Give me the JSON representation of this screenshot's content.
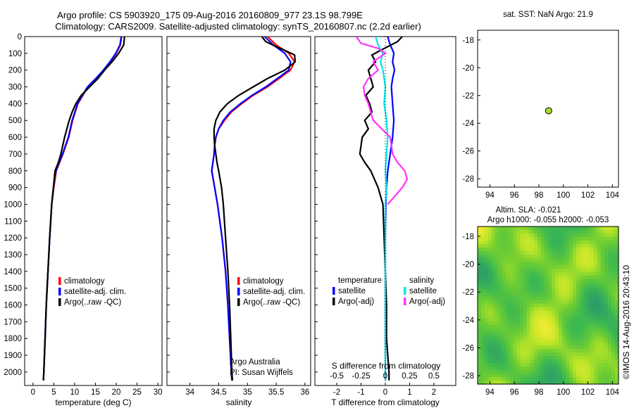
{
  "figure": {
    "title_line1": "Argo profile: CS 5903920_175 09-Aug-2016 20160809_977 23.1S 98.799E",
    "title_line2": "Climatology: CARS2009. Satellite-adjusted climatology: synTS_20160807.nc (2.2d earlier)",
    "credit": "©IMOS 14-Aug-2016 20:43:10",
    "argo_note": [
      "Argo Australia",
      "PI: Susan Wijffels"
    ]
  },
  "colors": {
    "climatology": "#ff0000",
    "satellite": "#0000ff",
    "argo": "#000000",
    "sat_sal": "#00e5e5",
    "argo_sal": "#ff33ff",
    "dot": "#a6e02a"
  },
  "chart_data": [
    {
      "type": "line",
      "id": "temperature",
      "xlabel": "temperature (deg C)",
      "xlim": [
        -2,
        31
      ],
      "xticks": [
        0,
        5,
        10,
        15,
        20,
        25,
        30
      ],
      "ylim": [
        2080,
        0
      ],
      "yticks": [
        0,
        100,
        200,
        300,
        400,
        500,
        600,
        700,
        800,
        900,
        1000,
        1100,
        1200,
        1300,
        1400,
        1500,
        1600,
        1700,
        1800,
        1900,
        2000
      ],
      "legend": [
        "climatology",
        "satellite-adj. clim.",
        "Argo(..raw -QC)"
      ],
      "series": [
        {
          "name": "climatology",
          "color": "#ff0000",
          "depth": [
            0,
            50,
            100,
            150,
            200,
            250,
            300,
            350,
            400,
            500,
            600,
            700,
            800,
            900,
            1000,
            1200,
            1400,
            1600,
            1800,
            2000,
            2050
          ],
          "values": [
            21.3,
            21.0,
            20.0,
            18.6,
            17.0,
            15.2,
            13.2,
            12.0,
            10.8,
            9.5,
            8.6,
            7.2,
            5.6,
            5.0,
            4.5,
            4.0,
            3.6,
            3.2,
            2.9,
            2.6,
            2.5
          ]
        },
        {
          "name": "satellite-adj. clim.",
          "color": "#0000ff",
          "depth": [
            0,
            50,
            100,
            150,
            200,
            250,
            300,
            350,
            400,
            500,
            600,
            700,
            800,
            900,
            1000,
            1200,
            1400,
            1600,
            1800,
            2000,
            2050
          ],
          "values": [
            21.2,
            20.9,
            19.9,
            18.5,
            16.9,
            15.1,
            13.1,
            11.9,
            10.7,
            9.4,
            8.5,
            7.1,
            5.5,
            4.9,
            4.5,
            4.0,
            3.6,
            3.2,
            2.9,
            2.6,
            2.5
          ]
        },
        {
          "name": "Argo(..raw -QC)",
          "color": "#000000",
          "depth": [
            0,
            50,
            100,
            150,
            200,
            250,
            300,
            350,
            400,
            450,
            500,
            600,
            700,
            750,
            800,
            900,
            1000,
            1200,
            1400,
            1600,
            1800,
            2000,
            2050
          ],
          "values": [
            22.0,
            21.8,
            20.6,
            19.0,
            17.2,
            15.6,
            13.6,
            11.6,
            10.3,
            9.4,
            8.7,
            7.6,
            6.7,
            6.1,
            5.3,
            4.9,
            4.5,
            4.0,
            3.6,
            3.2,
            2.9,
            2.6,
            2.5
          ]
        }
      ]
    },
    {
      "type": "line",
      "id": "salinity",
      "xlabel": "salinity",
      "xlim": [
        33.6,
        36.1
      ],
      "xticks": [
        34,
        34.5,
        35,
        35.5,
        36
      ],
      "ylim": [
        2080,
        0
      ],
      "legend": [
        "climatology",
        "satellite-adj. clim.",
        "Argo(..raw -QC)"
      ],
      "series": [
        {
          "name": "climatology",
          "color": "#ff0000",
          "depth": [
            0,
            50,
            100,
            150,
            200,
            250,
            300,
            350,
            400,
            450,
            500,
            550,
            600,
            650,
            700,
            800,
            900,
            1000,
            1200,
            1400,
            1600,
            1800,
            2000,
            2050
          ],
          "values": [
            35.35,
            35.5,
            35.72,
            35.82,
            35.75,
            35.55,
            35.35,
            35.1,
            34.9,
            34.72,
            34.6,
            34.5,
            34.45,
            34.43,
            34.42,
            34.38,
            34.43,
            34.48,
            34.56,
            34.62,
            34.66,
            34.69,
            34.72,
            34.73
          ]
        },
        {
          "name": "satellite-adj. clim.",
          "color": "#0000ff",
          "depth": [
            0,
            50,
            100,
            150,
            200,
            250,
            300,
            350,
            400,
            450,
            500,
            550,
            600,
            650,
            700,
            800,
            900,
            1000,
            1200,
            1400,
            1600,
            1800,
            2000,
            2050
          ],
          "values": [
            35.3,
            35.45,
            35.65,
            35.75,
            35.72,
            35.52,
            35.32,
            35.08,
            34.88,
            34.7,
            34.58,
            34.5,
            34.45,
            34.43,
            34.42,
            34.38,
            34.43,
            34.48,
            34.56,
            34.62,
            34.66,
            34.69,
            34.72,
            34.73
          ]
        },
        {
          "name": "Argo(..raw -QC)",
          "color": "#000000",
          "depth": [
            0,
            30,
            60,
            90,
            110,
            150,
            200,
            250,
            300,
            350,
            400,
            450,
            500,
            550,
            600,
            650,
            700,
            750,
            800,
            900,
            1000,
            1200,
            1400,
            1600,
            1800,
            2000,
            2050
          ],
          "values": [
            35.25,
            35.32,
            35.5,
            35.7,
            35.82,
            35.83,
            35.65,
            35.35,
            35.1,
            34.85,
            34.65,
            34.52,
            34.45,
            34.42,
            34.42,
            34.43,
            34.45,
            34.47,
            34.5,
            34.55,
            34.58,
            34.62,
            34.66,
            34.69,
            34.71,
            34.73,
            34.74
          ]
        }
      ]
    },
    {
      "type": "line",
      "id": "difference",
      "xlabel": "T difference from climatology",
      "top_axis_label": "S difference from climatology",
      "xlim": [
        -2.9,
        2.9
      ],
      "xticks": [
        -2,
        -1,
        0,
        1,
        2
      ],
      "top_ticks": [
        "-0.5",
        "-0.25",
        "0",
        "0.25",
        "0.5"
      ],
      "ylim": [
        2080,
        0
      ],
      "legend_groups": [
        {
          "title": "temperature",
          "items": [
            "satellite",
            "Argo(-adj)"
          ]
        },
        {
          "title": "salinity",
          "items": [
            "satellite",
            "Argo(-adj)"
          ]
        }
      ],
      "series": [
        {
          "name": "temperature satellite",
          "color": "#0000ff",
          "depth": [
            0,
            50,
            80,
            100,
            150,
            200,
            250,
            300,
            400,
            500,
            600,
            700,
            800,
            900,
            1000,
            1200,
            1400,
            1600,
            1800,
            2000,
            2050
          ],
          "values": [
            0.1,
            0.2,
            0.3,
            0.35,
            0.3,
            0.38,
            0.3,
            0.25,
            0.3,
            0.35,
            0.3,
            0.2,
            0.1,
            0.05,
            0.02,
            0.0,
            0.0,
            0.0,
            0.0,
            0.0,
            0.0
          ]
        },
        {
          "name": "temperature Argo(-adj)",
          "color": "#000000",
          "depth": [
            0,
            30,
            60,
            90,
            110,
            150,
            200,
            250,
            300,
            350,
            400,
            450,
            500,
            550,
            600,
            650,
            700,
            750,
            800,
            850,
            900,
            1000,
            1200,
            1400,
            1600,
            1800,
            2000,
            2050
          ],
          "values": [
            0.7,
            0.5,
            0.1,
            -0.3,
            -0.55,
            -0.4,
            -0.7,
            -0.6,
            -0.5,
            -0.8,
            -0.65,
            -0.55,
            -0.85,
            -0.7,
            -0.95,
            -1.0,
            -1.05,
            -0.85,
            -0.6,
            -0.45,
            -0.3,
            -0.1,
            -0.05,
            0.0,
            0.05,
            0.05,
            0.15,
            0.15
          ]
        },
        {
          "name": "salinity satellite",
          "color": "#00e5e5",
          "depth": [
            0,
            50,
            100,
            150,
            200,
            300,
            400,
            500,
            600,
            700,
            800,
            900,
            1000,
            1200,
            1400,
            1600,
            1800,
            2000,
            2050
          ],
          "values": [
            -0.4,
            -0.3,
            -0.1,
            -0.2,
            -0.1,
            0.0,
            -0.05,
            0.05,
            0.1,
            0.05,
            0.0,
            0.05,
            0.0,
            0.0,
            0.0,
            0.0,
            0.0,
            0.0,
            0.0
          ]
        },
        {
          "name": "salinity Argo(-adj)",
          "color": "#ff33ff",
          "depth": [
            0,
            40,
            70,
            100,
            150,
            200,
            250,
            300,
            350,
            400,
            500,
            600,
            700,
            750,
            800,
            850,
            900,
            950,
            1000
          ],
          "values": [
            -1.2,
            -1.0,
            -0.3,
            0.0,
            -0.5,
            -0.3,
            -0.7,
            -0.9,
            -0.85,
            -0.7,
            -0.5,
            0.2,
            0.3,
            0.5,
            0.8,
            0.9,
            0.7,
            0.4,
            0.1
          ]
        }
      ]
    },
    {
      "type": "scatter",
      "id": "location",
      "title": "sat. SST: NaN Argo: 21.9",
      "xlim": [
        93,
        104.5
      ],
      "xticks": [
        94,
        96,
        98,
        100,
        102,
        104
      ],
      "ylim": [
        -28.6,
        -17.3
      ],
      "yticks": [
        -18,
        -20,
        -22,
        -24,
        -26,
        -28
      ],
      "points": [
        {
          "lon": 98.8,
          "lat": -23.1
        }
      ]
    },
    {
      "type": "heatmap",
      "id": "altimetry",
      "title_line1": "Altim. SLA: -0.021",
      "title_line2": "Argo h1000: -0.055 h2000: -0.053",
      "xlim": [
        93,
        104.5
      ],
      "xticks": [
        94,
        96,
        98,
        100,
        102,
        104
      ],
      "ylim": [
        -28.6,
        -17.3
      ],
      "yticks": [
        -18,
        -20,
        -22,
        -24,
        -26,
        -28
      ],
      "point": {
        "lon": 98.8,
        "lat": -23.1
      }
    }
  ]
}
